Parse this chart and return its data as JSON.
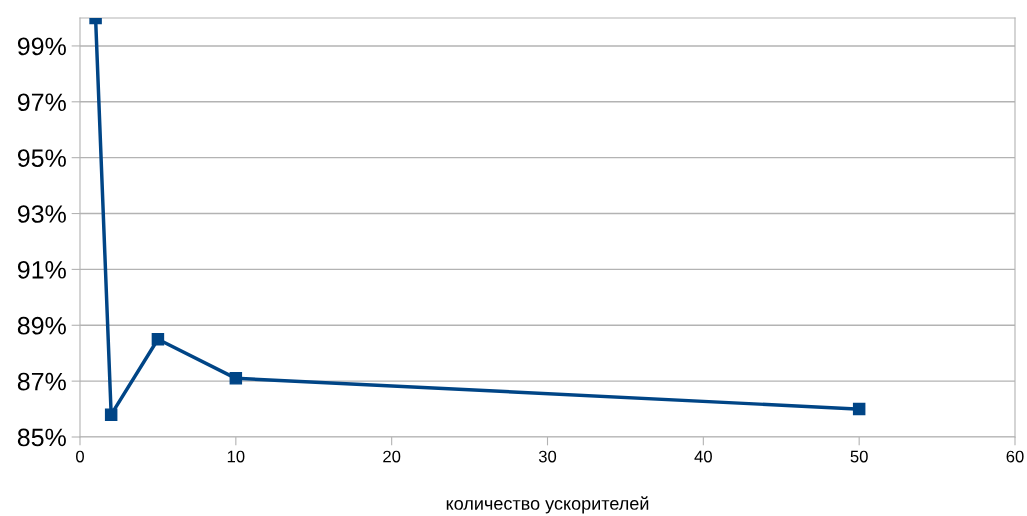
{
  "chart_data": {
    "type": "line",
    "xlabel": "количество ускорителей",
    "x": [
      1,
      2,
      5,
      10,
      50
    ],
    "series": [
      {
        "color": "#004586",
        "values": [
          100,
          85.8,
          88.5,
          87.1,
          86.0
        ]
      }
    ],
    "xlim": [
      0,
      60
    ],
    "xticks": [
      0,
      10,
      20,
      30,
      40,
      50,
      60
    ],
    "ylim": [
      85,
      100
    ],
    "yticks": [
      {
        "value": 85,
        "label": "85%"
      },
      {
        "value": 87,
        "label": "87%"
      },
      {
        "value": 89,
        "label": "89%"
      },
      {
        "value": 91,
        "label": "91%"
      },
      {
        "value": 93,
        "label": "93%"
      },
      {
        "value": 95,
        "label": "95%"
      },
      {
        "value": 97,
        "label": "97%"
      },
      {
        "value": 99,
        "label": "99%"
      }
    ],
    "grid": "y",
    "marker": "square",
    "line_style": "solid"
  }
}
